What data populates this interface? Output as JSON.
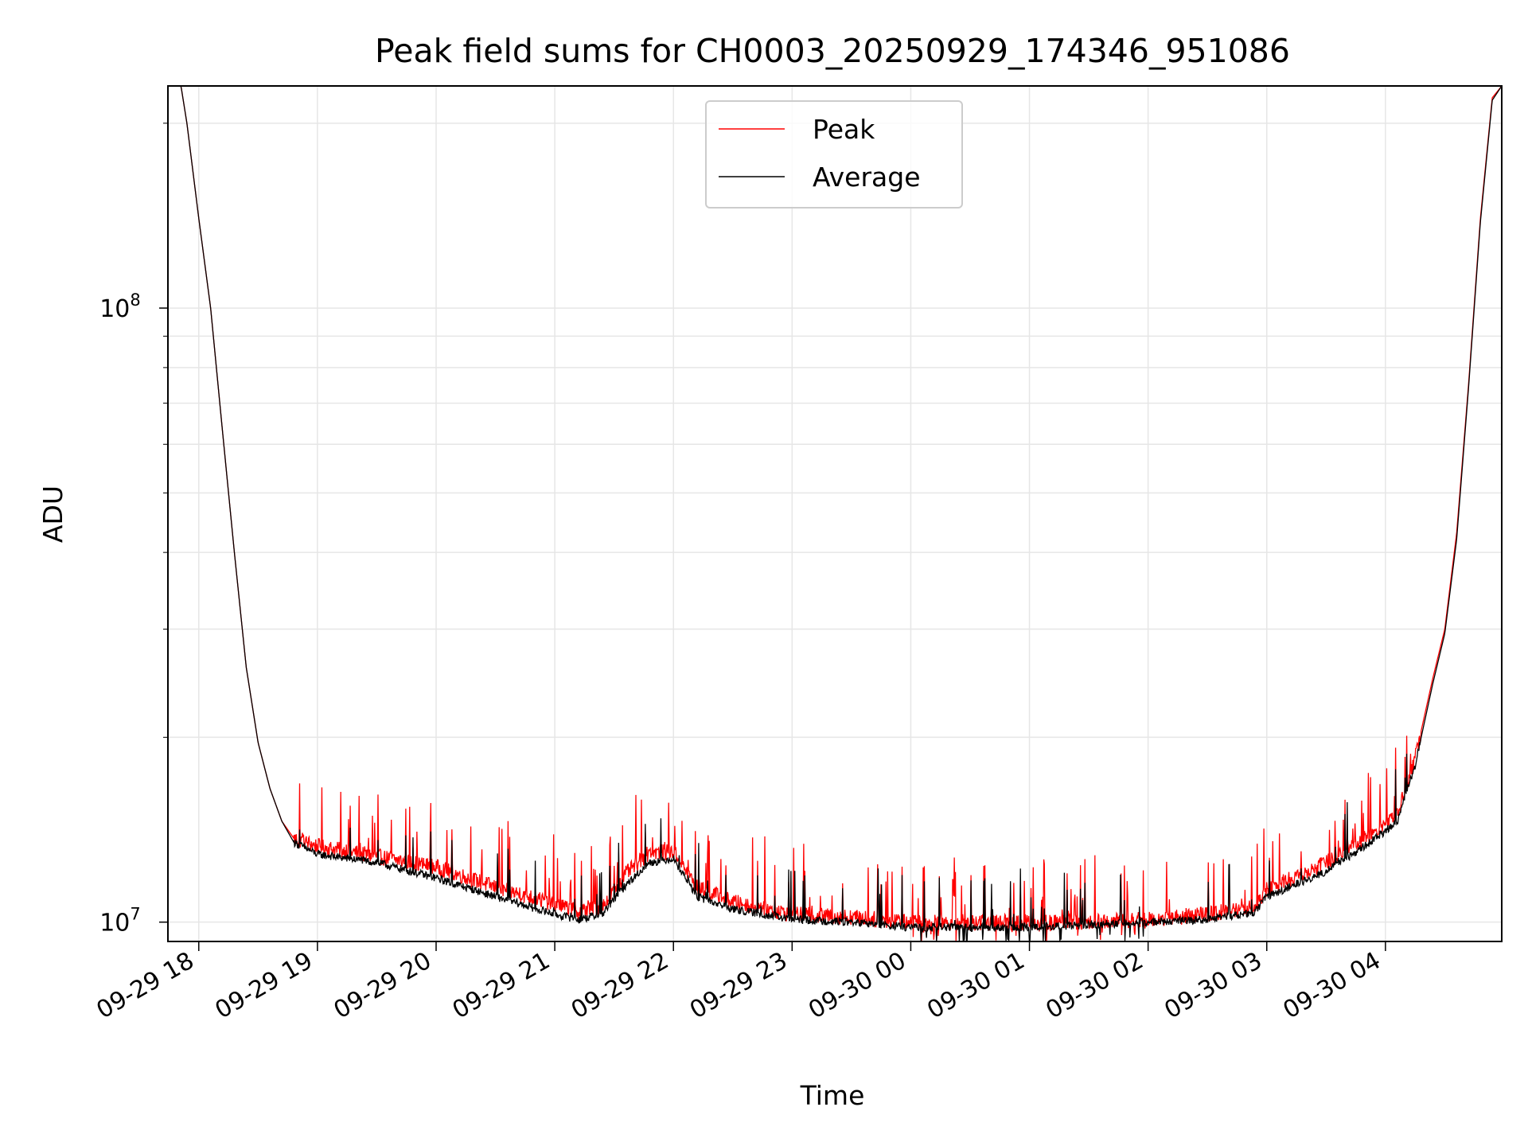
{
  "chart_data": {
    "type": "line",
    "title": "Peak field sums for CH0003_20250929_174346_951086",
    "xlabel": "Time",
    "ylabel": "ADU",
    "yscale": "log",
    "ylim": [
      9300000,
      230000000
    ],
    "xlim_hours": [
      -0.26,
      10.98
    ],
    "grid": true,
    "legend": {
      "placement": "upper-center",
      "entries": [
        "Peak",
        "Average"
      ]
    },
    "colors": {
      "peak": "#ff0000",
      "average": "#000000",
      "grid": "#e6e6e6"
    },
    "x_ticks": [
      {
        "label": "09-29 18",
        "hour": 0
      },
      {
        "label": "09-29 19",
        "hour": 1
      },
      {
        "label": "09-29 20",
        "hour": 2
      },
      {
        "label": "09-29 21",
        "hour": 3
      },
      {
        "label": "09-29 22",
        "hour": 4
      },
      {
        "label": "09-29 23",
        "hour": 5
      },
      {
        "label": "09-30 00",
        "hour": 6
      },
      {
        "label": "09-30 01",
        "hour": 7
      },
      {
        "label": "09-30 02",
        "hour": 8
      },
      {
        "label": "09-30 03",
        "hour": 9
      },
      {
        "label": "09-30 04",
        "hour": 10
      }
    ],
    "y_ticks": [
      {
        "base": "10",
        "exp": "7",
        "value": 10000000
      },
      {
        "base": "10",
        "exp": "8",
        "value": 100000000
      }
    ],
    "y_minor_ticks": [
      20000000,
      30000000,
      40000000,
      50000000,
      60000000,
      70000000,
      80000000,
      90000000,
      200000000
    ],
    "series": [
      {
        "name": "Peak",
        "key": "peak",
        "noise_amp": 0.06,
        "spike_rate": 0.2,
        "spike_amp": 0.14,
        "baseline": [
          [
            -0.26,
            230000000
          ],
          [
            -0.15,
            230000000
          ],
          [
            -0.1,
            200000000
          ],
          [
            0,
            140000000
          ],
          [
            0.1,
            100000000
          ],
          [
            0.2,
            63000000
          ],
          [
            0.3,
            40000000
          ],
          [
            0.4,
            26000000
          ],
          [
            0.5,
            19600000
          ],
          [
            0.6,
            16500000
          ],
          [
            0.7,
            14600000
          ],
          [
            0.8,
            13700000
          ],
          [
            1.0,
            13300000
          ],
          [
            1.5,
            12800000
          ],
          [
            2.0,
            12300000
          ],
          [
            2.5,
            11400000
          ],
          [
            3.0,
            10700000
          ],
          [
            3.2,
            10400000
          ],
          [
            3.4,
            10600000
          ],
          [
            3.6,
            12000000
          ],
          [
            3.8,
            13000000
          ],
          [
            4.0,
            13000000
          ],
          [
            4.2,
            11400000
          ],
          [
            4.5,
            10800000
          ],
          [
            5.0,
            10300000
          ],
          [
            5.5,
            10200000
          ],
          [
            6.0,
            10000000
          ],
          [
            6.5,
            10000000
          ],
          [
            7.0,
            10000000
          ],
          [
            7.5,
            10000000
          ],
          [
            8.0,
            10100000
          ],
          [
            8.5,
            10300000
          ],
          [
            8.9,
            10600000
          ],
          [
            9.0,
            11300000
          ],
          [
            9.5,
            12500000
          ],
          [
            9.9,
            14000000
          ],
          [
            10.1,
            15000000
          ],
          [
            10.25,
            18500000
          ],
          [
            10.4,
            25000000
          ],
          [
            10.5,
            30000000
          ],
          [
            10.6,
            43000000
          ],
          [
            10.7,
            75000000
          ],
          [
            10.8,
            140000000
          ],
          [
            10.9,
            220000000
          ],
          [
            10.98,
            230000000
          ]
        ]
      },
      {
        "name": "Average",
        "key": "average",
        "noise_amp": 0.03,
        "spike_rate": 0.1,
        "spike_amp": 0.12,
        "baseline": [
          [
            -0.26,
            230000000
          ],
          [
            -0.15,
            230000000
          ],
          [
            -0.1,
            200000000
          ],
          [
            0,
            140000000
          ],
          [
            0.1,
            100000000
          ],
          [
            0.2,
            63000000
          ],
          [
            0.3,
            40000000
          ],
          [
            0.4,
            26000000
          ],
          [
            0.5,
            19600000
          ],
          [
            0.6,
            16500000
          ],
          [
            0.7,
            14600000
          ],
          [
            0.8,
            13500000
          ],
          [
            1.0,
            12900000
          ],
          [
            1.5,
            12500000
          ],
          [
            2.0,
            11800000
          ],
          [
            2.5,
            11000000
          ],
          [
            3.0,
            10300000
          ],
          [
            3.2,
            10100000
          ],
          [
            3.4,
            10300000
          ],
          [
            3.6,
            11500000
          ],
          [
            3.8,
            12500000
          ],
          [
            4.0,
            12700000
          ],
          [
            4.2,
            11000000
          ],
          [
            4.5,
            10500000
          ],
          [
            5.0,
            10100000
          ],
          [
            5.5,
            10000000
          ],
          [
            6.0,
            9800000
          ],
          [
            6.5,
            9800000
          ],
          [
            7.0,
            9800000
          ],
          [
            7.5,
            9900000
          ],
          [
            8.0,
            10000000
          ],
          [
            8.5,
            10100000
          ],
          [
            8.9,
            10400000
          ],
          [
            9.0,
            11000000
          ],
          [
            9.5,
            12100000
          ],
          [
            9.9,
            13600000
          ],
          [
            10.1,
            14600000
          ],
          [
            10.25,
            18000000
          ],
          [
            10.4,
            24500000
          ],
          [
            10.5,
            29500000
          ],
          [
            10.6,
            42000000
          ],
          [
            10.7,
            74000000
          ],
          [
            10.8,
            138000000
          ],
          [
            10.9,
            218000000
          ],
          [
            10.98,
            230000000
          ]
        ]
      }
    ]
  }
}
